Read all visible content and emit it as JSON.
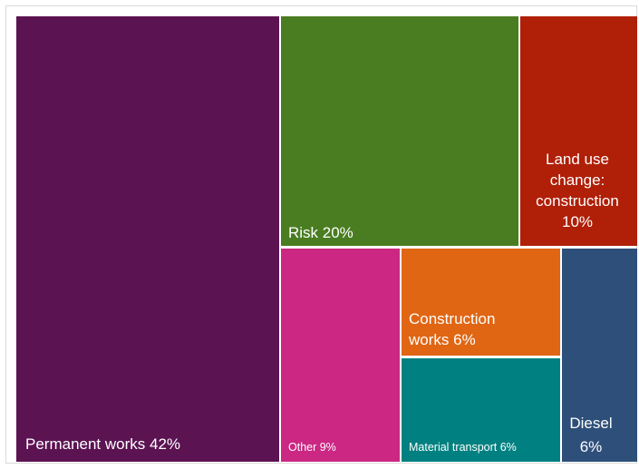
{
  "chart_data": {
    "type": "treemap",
    "title": "",
    "tiles": [
      {
        "name": "Permanent works",
        "value": 42,
        "label_lines": [
          "Permanent works 42%"
        ],
        "color": "#5c1352"
      },
      {
        "name": "Risk",
        "value": 20,
        "label_lines": [
          "Risk 20%"
        ],
        "color": "#4a7d21"
      },
      {
        "name": "Land use change: construction",
        "value": 10,
        "label_lines": [
          "Land use",
          "change:",
          "construction",
          "10%"
        ],
        "color": "#b01f08"
      },
      {
        "name": "Other",
        "value": 9,
        "label_lines": [
          "Other 9%"
        ],
        "color": "#cb2783"
      },
      {
        "name": "Construction works",
        "value": 6,
        "label_lines": [
          "Construction",
          "works 6%"
        ],
        "color": "#e06614"
      },
      {
        "name": "Material transport",
        "value": 6,
        "label_lines": [
          "Material transport 6%"
        ],
        "color": "#008080"
      },
      {
        "name": "Diesel",
        "value": 6,
        "label_lines": [
          "Diesel",
          "6%"
        ],
        "color": "#2e4f7a"
      }
    ]
  }
}
